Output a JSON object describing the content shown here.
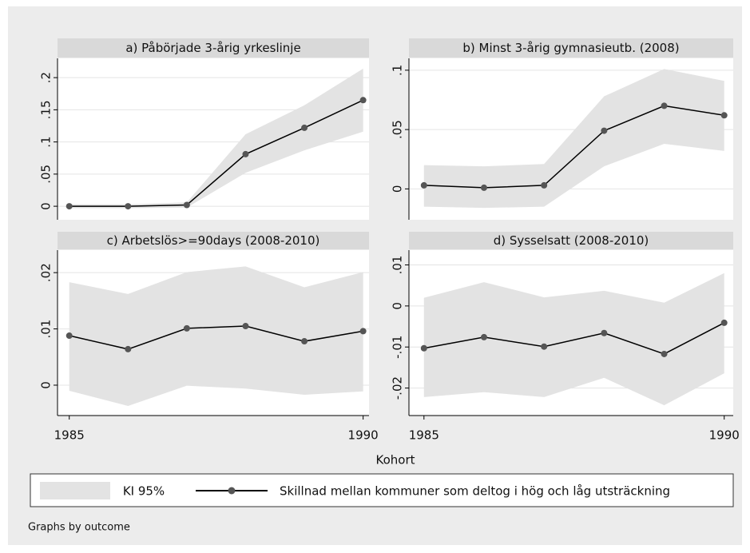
{
  "chart_data": [
    {
      "type": "line",
      "title": "a) Påbörjade 3-årig yrkeslinje",
      "x": [
        1985,
        1986,
        1987,
        1988,
        1989,
        1990
      ],
      "xlim": [
        1984.8,
        1990.1
      ],
      "values": [
        0,
        0,
        0.002,
        0.081,
        0.122,
        0.165
      ],
      "upper": [
        0.003,
        0.003,
        0.006,
        0.112,
        0.157,
        0.214
      ],
      "lower": [
        -0.003,
        -0.003,
        -0.002,
        0.052,
        0.087,
        0.116
      ],
      "ylim": [
        -0.021,
        0.23
      ],
      "yticks": [
        0,
        {
          "value": 0.05,
          "label": ".05"
        },
        {
          "value": 0.1,
          "label": ".1"
        },
        {
          "value": 0.15,
          "label": ".15"
        },
        {
          "value": 0.2,
          "label": ".2"
        }
      ],
      "color": "#000000",
      "marker_color": "#555555",
      "band_color": "#e3e3e3",
      "grid": true
    },
    {
      "type": "line",
      "title": "b) Minst 3-årig gymnasieutb. (2008)",
      "x": [
        1985,
        1986,
        1987,
        1988,
        1989,
        1990
      ],
      "xlim": [
        1984.75,
        1990.15
      ],
      "values": [
        0.003,
        0.001,
        0.003,
        0.049,
        0.07,
        0.062
      ],
      "upper": [
        0.02,
        0.019,
        0.021,
        0.078,
        0.101,
        0.091
      ],
      "lower": [
        -0.015,
        -0.016,
        -0.015,
        0.019,
        0.038,
        0.032
      ],
      "ylim": [
        -0.026,
        0.11
      ],
      "yticks": [
        0,
        {
          "value": 0.05,
          "label": ".05"
        },
        {
          "value": 0.1,
          "label": ".1"
        }
      ],
      "color": "#000000",
      "marker_color": "#555555",
      "band_color": "#e3e3e3",
      "grid": true
    },
    {
      "type": "line",
      "title": "c) Arbetslös>=90days (2008-2010)",
      "x": [
        1985,
        1986,
        1987,
        1988,
        1989,
        1990
      ],
      "xlim": [
        1984.8,
        1990.1
      ],
      "xticks": [
        1985,
        1990
      ],
      "values": [
        0.0088,
        0.0064,
        0.0101,
        0.0105,
        0.0078,
        0.0096
      ],
      "upper": [
        0.0183,
        0.0162,
        0.0201,
        0.0211,
        0.0174,
        0.0201
      ],
      "lower": [
        -0.001,
        -0.0037,
        -0.0001,
        -0.0006,
        -0.0017,
        -0.0011
      ],
      "ylim": [
        -0.0054,
        0.024
      ],
      "yticks": [
        0,
        {
          "value": 0.01,
          "label": ".01"
        },
        {
          "value": 0.02,
          "label": ".02"
        }
      ],
      "color": "#000000",
      "marker_color": "#555555",
      "band_color": "#e3e3e3",
      "grid": true
    },
    {
      "type": "line",
      "title": "d) Sysselsatt (2008-2010)",
      "x": [
        1985,
        1986,
        1987,
        1988,
        1989,
        1990
      ],
      "xlim": [
        1984.75,
        1990.15
      ],
      "xticks": [
        1985,
        1990
      ],
      "values": [
        -0.0103,
        -0.0076,
        -0.0099,
        -0.0066,
        -0.0117,
        -0.0041
      ],
      "upper": [
        0.002,
        0.0058,
        0.0021,
        0.0037,
        0.0008,
        0.008
      ],
      "lower": [
        -0.0222,
        -0.021,
        -0.0222,
        -0.0175,
        -0.0242,
        -0.0164
      ],
      "ylim": [
        -0.0267,
        0.0136
      ],
      "yticks": [
        {
          "value": -0.02,
          "label": "-.02"
        },
        {
          "value": -0.01,
          "label": "-.01"
        },
        0,
        {
          "value": 0.01,
          "label": ".01"
        }
      ],
      "color": "#000000",
      "marker_color": "#555555",
      "band_color": "#e3e3e3",
      "grid": true
    }
  ],
  "xlabel": "Kohort",
  "legend": {
    "band": "KI 95%",
    "line": "Skillnad mellan kommuner som deltog i hög och låg utsträckning"
  },
  "note": "Graphs by outcome"
}
